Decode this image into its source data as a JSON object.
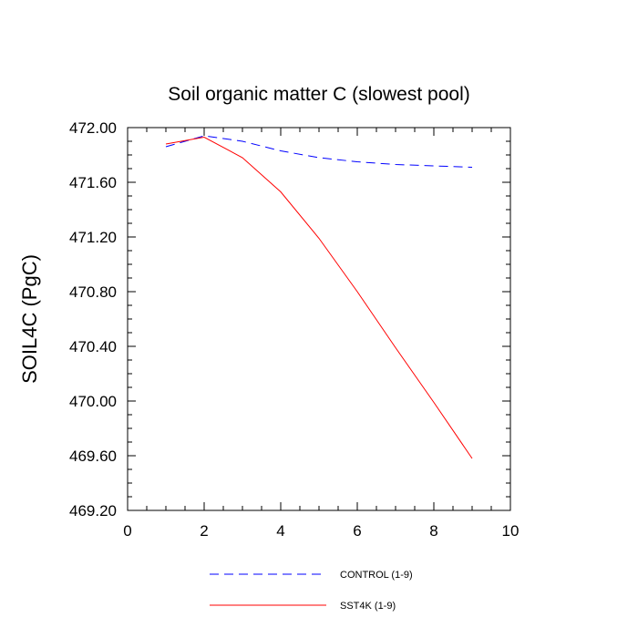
{
  "chart_data": {
    "type": "line",
    "title": "Soil organic matter C (slowest pool)",
    "xlabel": "",
    "ylabel": "SOIL4C  (PgC)",
    "xlim": [
      0,
      10
    ],
    "ylim": [
      469.2,
      472.0
    ],
    "x_ticks": [
      0,
      2,
      4,
      6,
      8,
      10
    ],
    "x_tick_labels": [
      "0",
      "2",
      "4",
      "6",
      "8",
      "10"
    ],
    "y_ticks": [
      469.2,
      469.6,
      470.0,
      470.4,
      470.8,
      471.2,
      471.6,
      472.0
    ],
    "y_tick_labels": [
      "469.20",
      "469.60",
      "470.00",
      "470.40",
      "470.80",
      "471.20",
      "471.60",
      "472.00"
    ],
    "grid": false,
    "legend_placement": "bottom",
    "series": [
      {
        "name": "CONTROL (1-9)",
        "color": "#0000ff",
        "style": "dashed",
        "x": [
          1,
          2,
          3,
          4,
          5,
          6,
          7,
          8,
          9
        ],
        "y": [
          471.86,
          471.94,
          471.9,
          471.83,
          471.78,
          471.75,
          471.73,
          471.72,
          471.71
        ]
      },
      {
        "name": "SST4K (1-9)",
        "color": "#ff0000",
        "style": "solid",
        "x": [
          1,
          2,
          3,
          4,
          5,
          6,
          7,
          8,
          9
        ],
        "y": [
          471.88,
          471.93,
          471.78,
          471.53,
          471.19,
          470.8,
          470.39,
          469.99,
          469.58
        ]
      }
    ]
  }
}
